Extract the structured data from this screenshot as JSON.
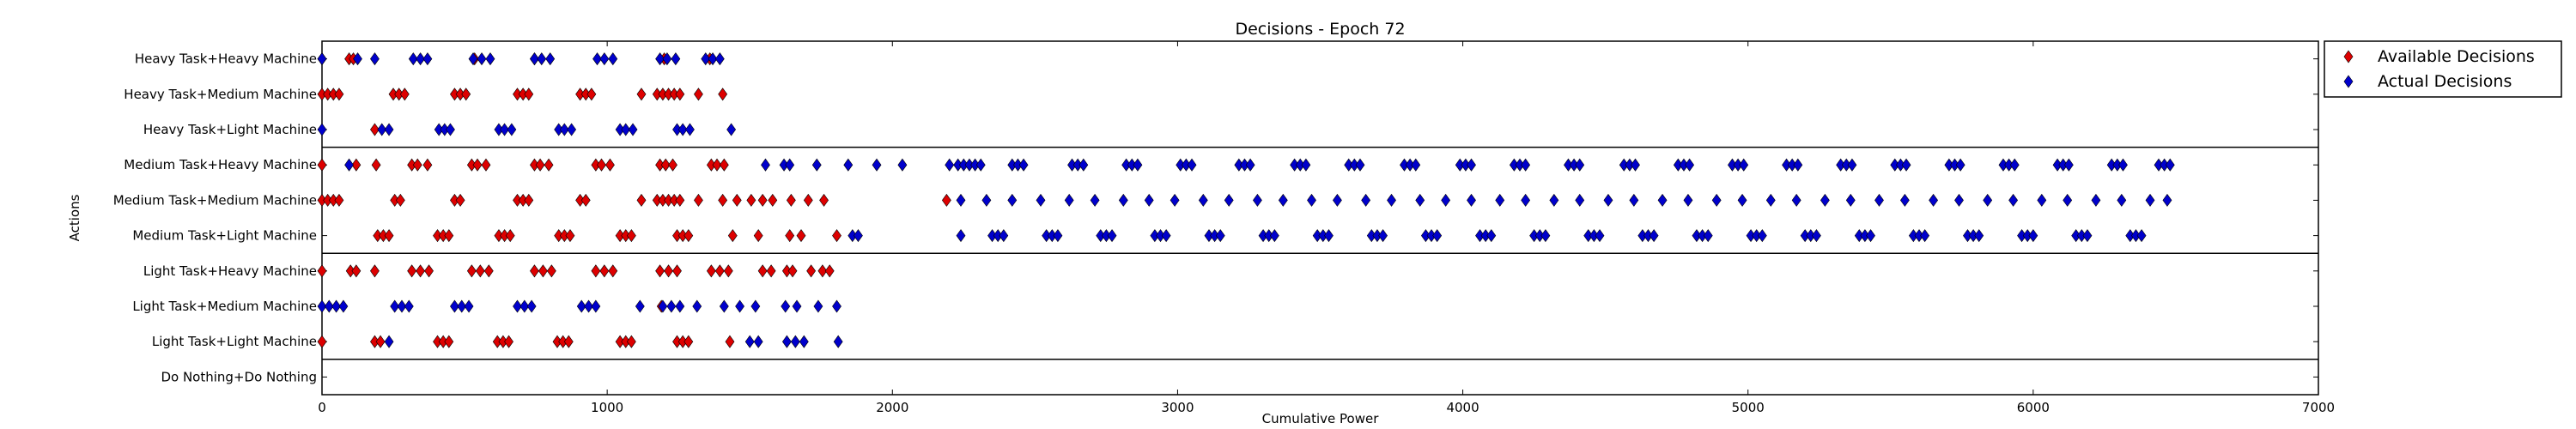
{
  "chart_data": {
    "type": "scatter",
    "title": "Decisions - Epoch 72",
    "xlabel": "Cumulative Power",
    "ylabel": "Actions",
    "xlim": [
      0,
      7000
    ],
    "x_ticks": [
      0,
      1000,
      2000,
      3000,
      4000,
      5000,
      6000,
      7000
    ],
    "x_tick_labels": [
      "0",
      "1000",
      "2000",
      "3000",
      "4000",
      "5000",
      "6000",
      "7000"
    ],
    "categories": [
      "Heavy Task+Heavy Machine",
      "Heavy Task+Medium Machine",
      "Heavy Task+Light Machine",
      "Medium Task+Heavy Machine",
      "Medium Task+Medium Machine",
      "Medium Task+Light Machine",
      "Light Task+Heavy Machine",
      "Light Task+Medium Machine",
      "Light Task+Light Machine",
      "Do Nothing+Do Nothing"
    ],
    "group_separators_after": [
      2,
      5,
      8
    ],
    "grid": false,
    "legend_position": "outside-top-right",
    "marker": "diamond",
    "series": [
      {
        "name": "Available Decisions",
        "color": "#dd0000",
        "points": [
          {
            "cat": "Heavy Task+Heavy Machine",
            "x": [
              0,
              95,
              110,
              535,
              745,
              1200,
              1360
            ]
          },
          {
            "cat": "Heavy Task+Medium Machine",
            "x": [
              0,
              20,
              40,
              60,
              250,
              270,
              290,
              465,
              485,
              505,
              685,
              705,
              725,
              905,
              925,
              945,
              1120,
              1175,
              1195,
              1215,
              1235,
              1255,
              1320,
              1405
            ]
          },
          {
            "cat": "Heavy Task+Light Machine",
            "x": [
              185
            ]
          },
          {
            "cat": "Medium Task+Heavy Machine",
            "x": [
              0,
              120,
              190,
              315,
              335,
              370,
              525,
              545,
              575,
              745,
              765,
              795,
              960,
              980,
              1010,
              1185,
              1205,
              1230,
              1365,
              1385,
              1410
            ]
          },
          {
            "cat": "Medium Task+Medium Machine",
            "x": [
              0,
              20,
              40,
              60,
              255,
              275,
              465,
              485,
              685,
              705,
              725,
              905,
              925,
              1120,
              1175,
              1195,
              1215,
              1235,
              1255,
              1320,
              1405,
              1455,
              1505,
              1545,
              1580,
              1645,
              1705,
              1760,
              2190
            ]
          },
          {
            "cat": "Medium Task+Light Machine",
            "x": [
              195,
              215,
              235,
              405,
              425,
              445,
              620,
              640,
              660,
              830,
              850,
              870,
              1045,
              1065,
              1085,
              1245,
              1265,
              1285,
              1440,
              1530,
              1640,
              1680,
              1805
            ]
          },
          {
            "cat": "Light Task+Heavy Machine",
            "x": [
              0,
              100,
              120,
              185,
              315,
              345,
              375,
              525,
              555,
              585,
              745,
              775,
              805,
              960,
              990,
              1020,
              1185,
              1215,
              1245,
              1365,
              1395,
              1425,
              1545,
              1575,
              1630,
              1650,
              1715,
              1755,
              1780
            ]
          },
          {
            "cat": "Light Task+Medium Machine",
            "x": [
              1190
            ]
          },
          {
            "cat": "Light Task+Light Machine",
            "x": [
              0,
              185,
              205,
              405,
              425,
              445,
              615,
              635,
              655,
              825,
              845,
              865,
              1045,
              1065,
              1085,
              1245,
              1265,
              1285,
              1430
            ]
          }
        ]
      },
      {
        "name": "Actual Decisions",
        "color": "#0000cc",
        "points": [
          {
            "cat": "Heavy Task+Heavy Machine",
            "x": [
              0,
              125,
              185,
              320,
              345,
              370,
              530,
              560,
              590,
              745,
              770,
              800,
              965,
              990,
              1020,
              1185,
              1210,
              1240,
              1345,
              1370,
              1395
            ]
          },
          {
            "cat": "Heavy Task+Light Machine",
            "x": [
              0,
              210,
              235,
              410,
              430,
              450,
              620,
              640,
              665,
              830,
              850,
              875,
              1045,
              1065,
              1090,
              1245,
              1265,
              1290,
              1435
            ]
          },
          {
            "cat": "Medium Task+Heavy Machine",
            "x": [
              95,
              1555,
              1620,
              1640,
              1735,
              1845,
              1945,
              2035,
              2200,
              2230,
              2250,
              2270,
              2290,
              2310,
              2420,
              2440,
              2460,
              2630,
              2650,
              2670,
              2820,
              2840,
              2860,
              3010,
              3030,
              3050,
              3215,
              3235,
              3255,
              3410,
              3430,
              3450,
              3600,
              3620,
              3640,
              3795,
              3815,
              3835,
              3990,
              4010,
              4030,
              4180,
              4200,
              4220,
              4370,
              4390,
              4410,
              4565,
              4585,
              4605,
              4755,
              4775,
              4795,
              4945,
              4965,
              4985,
              5135,
              5155,
              5175,
              5325,
              5345,
              5365,
              5515,
              5535,
              5555,
              5705,
              5725,
              5745,
              5895,
              5915,
              5935,
              6085,
              6105,
              6125,
              6275,
              6295,
              6315,
              6440,
              6460,
              6480
            ]
          },
          {
            "cat": "Medium Task+Medium Machine",
            "x": [
              2240,
              2330,
              2420,
              2520,
              2620,
              2710,
              2810,
              2900,
              2990,
              3090,
              3180,
              3280,
              3370,
              3470,
              3560,
              3660,
              3750,
              3850,
              3940,
              4030,
              4130,
              4220,
              4320,
              4410,
              4510,
              4600,
              4700,
              4790,
              4890,
              4980,
              5080,
              5170,
              5270,
              5360,
              5460,
              5550,
              5650,
              5740,
              5840,
              5930,
              6030,
              6120,
              6220,
              6310,
              6410,
              6470
            ]
          },
          {
            "cat": "Medium Task+Light Machine",
            "x": [
              1860,
              1880,
              2240,
              2350,
              2370,
              2390,
              2540,
              2560,
              2580,
              2730,
              2750,
              2770,
              2920,
              2940,
              2960,
              3110,
              3130,
              3150,
              3300,
              3320,
              3340,
              3490,
              3510,
              3530,
              3680,
              3700,
              3720,
              3870,
              3890,
              3910,
              4060,
              4080,
              4100,
              4250,
              4270,
              4290,
              4440,
              4460,
              4480,
              4630,
              4650,
              4670,
              4820,
              4840,
              4860,
              5010,
              5030,
              5050,
              5200,
              5220,
              5240,
              5390,
              5410,
              5430,
              5580,
              5600,
              5620,
              5770,
              5790,
              5810,
              5960,
              5980,
              6000,
              6150,
              6170,
              6190,
              6340,
              6360,
              6380
            ]
          },
          {
            "cat": "Light Task+Medium Machine",
            "x": [
              0,
              25,
              50,
              75,
              255,
              280,
              305,
              465,
              490,
              515,
              685,
              710,
              735,
              910,
              935,
              960,
              1115,
              1195,
              1225,
              1255,
              1315,
              1410,
              1465,
              1520,
              1625,
              1665,
              1740,
              1805
            ]
          },
          {
            "cat": "Light Task+Light Machine",
            "x": [
              235,
              1500,
              1530,
              1630,
              1660,
              1690,
              1810
            ]
          }
        ]
      }
    ]
  }
}
